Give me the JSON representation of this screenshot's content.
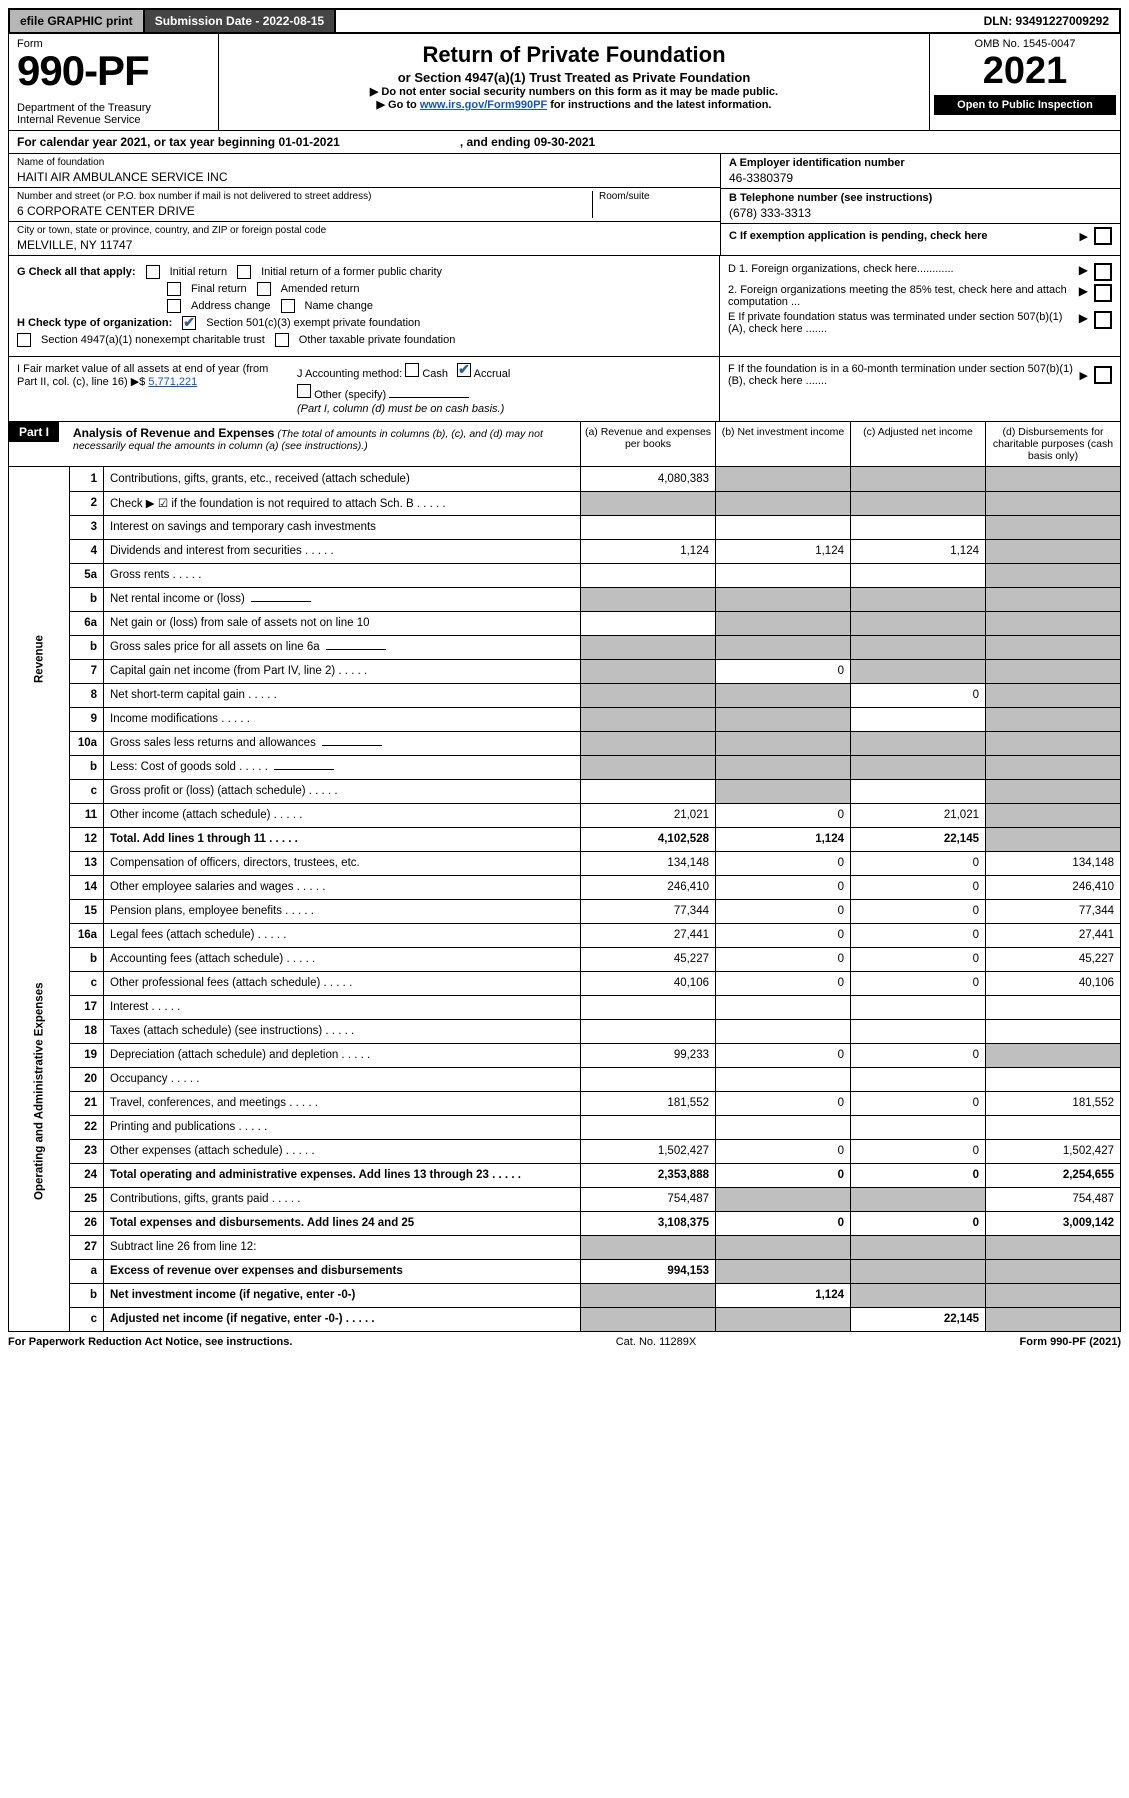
{
  "topbar": {
    "efile": "efile GRAPHIC print",
    "submission_label": "Submission Date - 2022-08-15",
    "dln": "DLN: 93491227009292"
  },
  "header": {
    "form_word": "Form",
    "form_no": "990-PF",
    "dept": "Department of the Treasury",
    "irs": "Internal Revenue Service",
    "title": "Return of Private Foundation",
    "subtitle": "or Section 4947(a)(1) Trust Treated as Private Foundation",
    "note1": "▶ Do not enter social security numbers on this form as it may be made public.",
    "note2_pre": "▶ Go to ",
    "note2_link": "www.irs.gov/Form990PF",
    "note2_post": " for instructions and the latest information.",
    "omb": "OMB No. 1545-0047",
    "year": "2021",
    "open": "Open to Public Inspection"
  },
  "calrow": {
    "text": "For calendar year 2021, or tax year beginning 01-01-2021",
    "ending": ", and ending 09-30-2021"
  },
  "id": {
    "name_lbl": "Name of foundation",
    "name": "HAITI AIR AMBULANCE SERVICE INC",
    "addr_lbl": "Number and street (or P.O. box number if mail is not delivered to street address)",
    "addr": "6 CORPORATE CENTER DRIVE",
    "room_lbl": "Room/suite",
    "city_lbl": "City or town, state or province, country, and ZIP or foreign postal code",
    "city": "MELVILLE, NY  11747",
    "a_lbl": "A Employer identification number",
    "a_val": "46-3380379",
    "b_lbl": "B Telephone number (see instructions)",
    "b_val": "(678) 333-3313",
    "c_lbl": "C If exemption application is pending, check here"
  },
  "g": {
    "label": "G Check all that apply:",
    "opts": [
      "Initial return",
      "Initial return of a former public charity",
      "Final return",
      "Amended return",
      "Address change",
      "Name change"
    ]
  },
  "h": {
    "label": "H Check type of organization:",
    "opt1": "Section 501(c)(3) exempt private foundation",
    "opt2": "Section 4947(a)(1) nonexempt charitable trust",
    "opt3": "Other taxable private foundation"
  },
  "d": {
    "d1": "D 1. Foreign organizations, check here............",
    "d2": "2. Foreign organizations meeting the 85% test, check here and attach computation ...",
    "e": "E  If private foundation status was terminated under section 507(b)(1)(A), check here .......",
    "f": "F  If the foundation is in a 60-month termination under section 507(b)(1)(B), check here ......."
  },
  "i": {
    "label": "I Fair market value of all assets at end of year (from Part II, col. (c), line 16) ▶$",
    "val": "5,771,221"
  },
  "j": {
    "label": "J Accounting method:",
    "cash": "Cash",
    "accrual": "Accrual",
    "other": "Other (specify)",
    "note": "(Part I, column (d) must be on cash basis.)"
  },
  "part1": {
    "label": "Part I",
    "title": "Analysis of Revenue and Expenses",
    "note": " (The total of amounts in columns (b), (c), and (d) may not necessarily equal the amounts in column (a) (see instructions).)",
    "cols": {
      "a": "(a) Revenue and expenses per books",
      "b": "(b) Net investment income",
      "c": "(c) Adjusted net income",
      "d": "(d) Disbursements for charitable purposes (cash basis only)"
    }
  },
  "sides": {
    "rev": "Revenue",
    "exp": "Operating and Administrative Expenses"
  },
  "rows": [
    {
      "ln": "1",
      "desc": "Contributions, gifts, grants, etc., received (attach schedule)",
      "a": "4,080,383",
      "b": "",
      "c": "",
      "d": "",
      "shade": [
        "b",
        "c",
        "d"
      ]
    },
    {
      "ln": "2",
      "desc": "Check ▶ ☑ if the foundation is not required to attach Sch. B",
      "a": "",
      "b": "",
      "c": "",
      "d": "",
      "shade": [
        "a",
        "b",
        "c",
        "d"
      ],
      "dots": true
    },
    {
      "ln": "3",
      "desc": "Interest on savings and temporary cash investments",
      "a": "",
      "b": "",
      "c": "",
      "d": "",
      "shade": [
        "d"
      ]
    },
    {
      "ln": "4",
      "desc": "Dividends and interest from securities",
      "a": "1,124",
      "b": "1,124",
      "c": "1,124",
      "d": "",
      "shade": [
        "d"
      ],
      "dots": true
    },
    {
      "ln": "5a",
      "desc": "Gross rents",
      "a": "",
      "b": "",
      "c": "",
      "d": "",
      "shade": [
        "d"
      ],
      "dots": true
    },
    {
      "ln": "b",
      "desc": "Net rental income or (loss)",
      "a": "",
      "b": "",
      "c": "",
      "d": "",
      "shade": [
        "a",
        "b",
        "c",
        "d"
      ],
      "uline": true
    },
    {
      "ln": "6a",
      "desc": "Net gain or (loss) from sale of assets not on line 10",
      "a": "",
      "b": "",
      "c": "",
      "d": "",
      "shade": [
        "b",
        "c",
        "d"
      ]
    },
    {
      "ln": "b",
      "desc": "Gross sales price for all assets on line 6a",
      "a": "",
      "b": "",
      "c": "",
      "d": "",
      "shade": [
        "a",
        "b",
        "c",
        "d"
      ],
      "uline": true
    },
    {
      "ln": "7",
      "desc": "Capital gain net income (from Part IV, line 2)",
      "a": "",
      "b": "0",
      "c": "",
      "d": "",
      "shade": [
        "a",
        "c",
        "d"
      ],
      "dots": true
    },
    {
      "ln": "8",
      "desc": "Net short-term capital gain",
      "a": "",
      "b": "",
      "c": "0",
      "d": "",
      "shade": [
        "a",
        "b",
        "d"
      ],
      "dots": true
    },
    {
      "ln": "9",
      "desc": "Income modifications",
      "a": "",
      "b": "",
      "c": "",
      "d": "",
      "shade": [
        "a",
        "b",
        "d"
      ],
      "dots": true
    },
    {
      "ln": "10a",
      "desc": "Gross sales less returns and allowances",
      "a": "",
      "b": "",
      "c": "",
      "d": "",
      "shade": [
        "a",
        "b",
        "c",
        "d"
      ],
      "uline": true
    },
    {
      "ln": "b",
      "desc": "Less: Cost of goods sold",
      "a": "",
      "b": "",
      "c": "",
      "d": "",
      "shade": [
        "a",
        "b",
        "c",
        "d"
      ],
      "dots": true,
      "uline": true
    },
    {
      "ln": "c",
      "desc": "Gross profit or (loss) (attach schedule)",
      "a": "",
      "b": "",
      "c": "",
      "d": "",
      "shade": [
        "b",
        "d"
      ],
      "dots": true
    },
    {
      "ln": "11",
      "desc": "Other income (attach schedule)",
      "a": "21,021",
      "b": "0",
      "c": "21,021",
      "d": "",
      "shade": [
        "d"
      ],
      "dots": true
    },
    {
      "ln": "12",
      "desc": "Total. Add lines 1 through 11",
      "a": "4,102,528",
      "b": "1,124",
      "c": "22,145",
      "d": "",
      "shade": [
        "d"
      ],
      "bold": true,
      "dots": true
    },
    {
      "ln": "13",
      "desc": "Compensation of officers, directors, trustees, etc.",
      "a": "134,148",
      "b": "0",
      "c": "0",
      "d": "134,148"
    },
    {
      "ln": "14",
      "desc": "Other employee salaries and wages",
      "a": "246,410",
      "b": "0",
      "c": "0",
      "d": "246,410",
      "dots": true
    },
    {
      "ln": "15",
      "desc": "Pension plans, employee benefits",
      "a": "77,344",
      "b": "0",
      "c": "0",
      "d": "77,344",
      "dots": true
    },
    {
      "ln": "16a",
      "desc": "Legal fees (attach schedule)",
      "a": "27,441",
      "b": "0",
      "c": "0",
      "d": "27,441",
      "dots": true
    },
    {
      "ln": "b",
      "desc": "Accounting fees (attach schedule)",
      "a": "45,227",
      "b": "0",
      "c": "0",
      "d": "45,227",
      "dots": true
    },
    {
      "ln": "c",
      "desc": "Other professional fees (attach schedule)",
      "a": "40,106",
      "b": "0",
      "c": "0",
      "d": "40,106",
      "dots": true
    },
    {
      "ln": "17",
      "desc": "Interest",
      "a": "",
      "b": "",
      "c": "",
      "d": "",
      "dots": true
    },
    {
      "ln": "18",
      "desc": "Taxes (attach schedule) (see instructions)",
      "a": "",
      "b": "",
      "c": "",
      "d": "",
      "dots": true
    },
    {
      "ln": "19",
      "desc": "Depreciation (attach schedule) and depletion",
      "a": "99,233",
      "b": "0",
      "c": "0",
      "d": "",
      "shade": [
        "d"
      ],
      "dots": true
    },
    {
      "ln": "20",
      "desc": "Occupancy",
      "a": "",
      "b": "",
      "c": "",
      "d": "",
      "dots": true
    },
    {
      "ln": "21",
      "desc": "Travel, conferences, and meetings",
      "a": "181,552",
      "b": "0",
      "c": "0",
      "d": "181,552",
      "dots": true
    },
    {
      "ln": "22",
      "desc": "Printing and publications",
      "a": "",
      "b": "",
      "c": "",
      "d": "",
      "dots": true
    },
    {
      "ln": "23",
      "desc": "Other expenses (attach schedule)",
      "a": "1,502,427",
      "b": "0",
      "c": "0",
      "d": "1,502,427",
      "dots": true
    },
    {
      "ln": "24",
      "desc": "Total operating and administrative expenses. Add lines 13 through 23",
      "a": "2,353,888",
      "b": "0",
      "c": "0",
      "d": "2,254,655",
      "bold": true,
      "dots": true
    },
    {
      "ln": "25",
      "desc": "Contributions, gifts, grants paid",
      "a": "754,487",
      "b": "",
      "c": "",
      "d": "754,487",
      "shade": [
        "b",
        "c"
      ],
      "dots": true
    },
    {
      "ln": "26",
      "desc": "Total expenses and disbursements. Add lines 24 and 25",
      "a": "3,108,375",
      "b": "0",
      "c": "0",
      "d": "3,009,142",
      "bold": true
    },
    {
      "ln": "27",
      "desc": "Subtract line 26 from line 12:",
      "a": "",
      "b": "",
      "c": "",
      "d": "",
      "shade": [
        "a",
        "b",
        "c",
        "d"
      ]
    },
    {
      "ln": "a",
      "desc": "Excess of revenue over expenses and disbursements",
      "a": "994,153",
      "b": "",
      "c": "",
      "d": "",
      "shade": [
        "b",
        "c",
        "d"
      ],
      "bold": true
    },
    {
      "ln": "b",
      "desc": "Net investment income (if negative, enter -0-)",
      "a": "",
      "b": "1,124",
      "c": "",
      "d": "",
      "shade": [
        "a",
        "c",
        "d"
      ],
      "bold": true
    },
    {
      "ln": "c",
      "desc": "Adjusted net income (if negative, enter -0-)",
      "a": "",
      "b": "",
      "c": "22,145",
      "d": "",
      "shade": [
        "a",
        "b",
        "d"
      ],
      "bold": true,
      "dots": true
    }
  ],
  "footer": {
    "left": "For Paperwork Reduction Act Notice, see instructions.",
    "mid": "Cat. No. 11289X",
    "right": "Form 990-PF (2021)"
  },
  "colors": {
    "shade": "#bfbfbf",
    "link": "#1155cc",
    "topgrey": "#b6b6b6",
    "topdark": "#444444"
  }
}
